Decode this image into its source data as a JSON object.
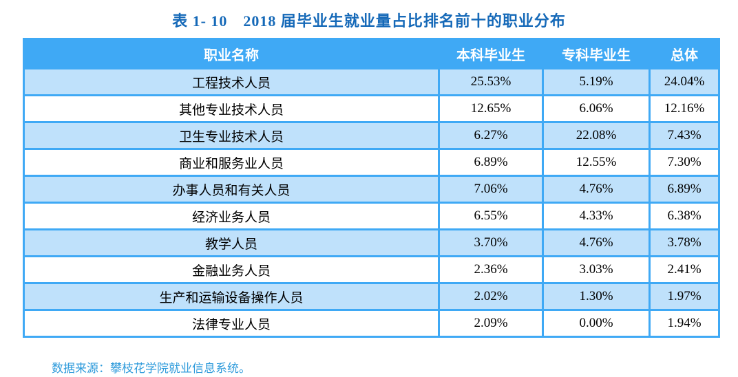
{
  "title": "表 1- 10　2018 届毕业生就业量占比排名前十的职业分布",
  "table": {
    "columns": [
      "职业名称",
      "本科毕业生",
      "专科毕业生",
      "总体"
    ],
    "rows": [
      {
        "occupation": "工程技术人员",
        "undergraduate": "25.53%",
        "junior_college": "5.19%",
        "overall": "24.04%"
      },
      {
        "occupation": "其他专业技术人员",
        "undergraduate": "12.65%",
        "junior_college": "6.06%",
        "overall": "12.16%"
      },
      {
        "occupation": "卫生专业技术人员",
        "undergraduate": "6.27%",
        "junior_college": "22.08%",
        "overall": "7.43%"
      },
      {
        "occupation": "商业和服务业人员",
        "undergraduate": "6.89%",
        "junior_college": "12.55%",
        "overall": "7.30%"
      },
      {
        "occupation": "办事人员和有关人员",
        "undergraduate": "7.06%",
        "junior_college": "4.76%",
        "overall": "6.89%"
      },
      {
        "occupation": "经济业务人员",
        "undergraduate": "6.55%",
        "junior_college": "4.33%",
        "overall": "6.38%"
      },
      {
        "occupation": "教学人员",
        "undergraduate": "3.70%",
        "junior_college": "4.76%",
        "overall": "3.78%"
      },
      {
        "occupation": "金融业务人员",
        "undergraduate": "2.36%",
        "junior_college": "3.03%",
        "overall": "2.41%"
      },
      {
        "occupation": "生产和运输设备操作人员",
        "undergraduate": "2.02%",
        "junior_college": "1.30%",
        "overall": "1.97%"
      },
      {
        "occupation": "法律专业人员",
        "undergraduate": "2.09%",
        "junior_college": "0.00%",
        "overall": "1.94%"
      }
    ]
  },
  "footer": {
    "source_note": "数据来源：攀枝花学院就业信息系统。"
  },
  "colors": {
    "header_bg": "#3FA9F5",
    "border": "#3FA9F5",
    "row_alt_bg": "#BFE1FB",
    "row_bg": "#FFFFFF",
    "header_text": "#FFFFFF",
    "body_text": "#000000",
    "title_text": "#1569B8",
    "source_text": "#2F9BDB"
  }
}
